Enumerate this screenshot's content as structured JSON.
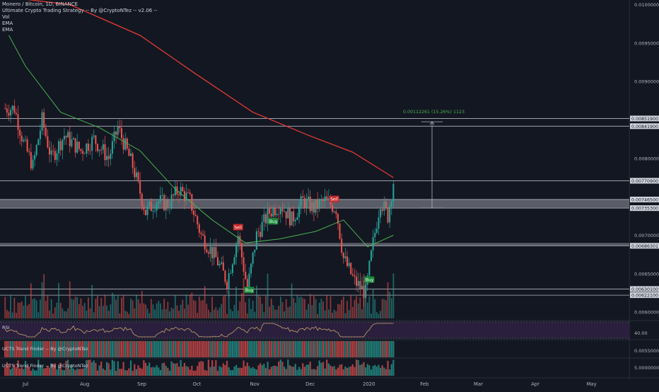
{
  "chart_data": {
    "type": "candlestick",
    "symbol_line": "Monero / Bitcoin, 1D, BINANCE",
    "legend": [
      "Ultimate Crypto Trading Strategy -- By @CryptoNTez -- v2.06 --",
      "Vol",
      "EMA",
      "EMA"
    ],
    "price_axis": {
      "range": [
        0.0059,
        0.01006
      ],
      "ticks": [
        "0.01000000",
        "0.00950000",
        "0.00900000",
        "0.00800000",
        "0.00700000",
        "0.00650000",
        "0.00600000",
        "0.00550000"
      ],
      "tick_values": [
        0.01,
        0.0095,
        0.009,
        0.008,
        0.007,
        0.0065,
        0.006,
        0.0055
      ]
    },
    "horizontal_levels": [
      {
        "label": "0.00851900",
        "value": 0.008519
      },
      {
        "label": "0.00841900",
        "value": 0.008419
      },
      {
        "label": "0.00770900",
        "value": 0.007709
      },
      {
        "label": "0.00746500",
        "value": 0.007465
      },
      {
        "label": "0.00735300",
        "value": 0.007353
      },
      {
        "label": "0.00686301",
        "value": 0.00686301
      },
      {
        "label": "0.00630100",
        "value": 0.006301
      },
      {
        "label": "0.00622100",
        "value": 0.006221
      }
    ],
    "zones": [
      {
        "from": 0.007353,
        "to": 0.007465
      },
      {
        "from": 0.00686301,
        "to": 0.0069
      }
    ],
    "measure": {
      "label": "0.00112261 (15.26%) 1123",
      "from": 0.007353,
      "to": 0.008476
    },
    "time_axis": [
      "Jul",
      "Aug",
      "Sep",
      "Oct",
      "Nov",
      "Dec",
      "2020",
      "Feb",
      "Mar",
      "Apr",
      "May"
    ],
    "signals": [
      {
        "type": "Sell",
        "date": "2019-10-24"
      },
      {
        "type": "Buy",
        "date": "2019-10-30"
      },
      {
        "type": "Buy",
        "date": "2019-11-12"
      },
      {
        "type": "Sell",
        "date": "2019-12-15"
      },
      {
        "type": "Buy",
        "date": "2020-01-03"
      }
    ],
    "ohlc_anchors": [
      {
        "date": "2019-06-25",
        "close": 0.00865
      },
      {
        "date": "2019-06-30",
        "close": 0.0082
      },
      {
        "date": "2019-07-05",
        "close": 0.0079
      },
      {
        "date": "2019-07-10",
        "close": 0.0085
      },
      {
        "date": "2019-07-15",
        "close": 0.008
      },
      {
        "date": "2019-07-22",
        "close": 0.0083
      },
      {
        "date": "2019-07-31",
        "close": 0.0081
      },
      {
        "date": "2019-08-07",
        "close": 0.00825
      },
      {
        "date": "2019-08-15",
        "close": 0.008
      },
      {
        "date": "2019-08-20",
        "close": 0.0084
      },
      {
        "date": "2019-08-28",
        "close": 0.0079
      },
      {
        "date": "2019-09-04",
        "close": 0.0073
      },
      {
        "date": "2019-09-10",
        "close": 0.00745
      },
      {
        "date": "2019-09-16",
        "close": 0.0074
      },
      {
        "date": "2019-09-22",
        "close": 0.0076
      },
      {
        "date": "2019-09-28",
        "close": 0.00745
      },
      {
        "date": "2019-10-04",
        "close": 0.007
      },
      {
        "date": "2019-10-12",
        "close": 0.0067
      },
      {
        "date": "2019-10-18",
        "close": 0.0064
      },
      {
        "date": "2019-10-24",
        "close": 0.007
      },
      {
        "date": "2019-10-29",
        "close": 0.0063
      },
      {
        "date": "2019-11-03",
        "close": 0.007
      },
      {
        "date": "2019-11-10",
        "close": 0.0073
      },
      {
        "date": "2019-11-16",
        "close": 0.0074
      },
      {
        "date": "2019-11-22",
        "close": 0.0072
      },
      {
        "date": "2019-11-28",
        "close": 0.00745
      },
      {
        "date": "2019-12-04",
        "close": 0.00735
      },
      {
        "date": "2019-12-10",
        "close": 0.00745
      },
      {
        "date": "2019-12-16",
        "close": 0.00735
      },
      {
        "date": "2019-12-20",
        "close": 0.0067
      },
      {
        "date": "2019-12-26",
        "close": 0.0064
      },
      {
        "date": "2020-01-01",
        "close": 0.00625
      },
      {
        "date": "2020-01-05",
        "close": 0.0069
      },
      {
        "date": "2020-01-09",
        "close": 0.00745
      },
      {
        "date": "2020-01-13",
        "close": 0.00725
      },
      {
        "date": "2020-01-16",
        "close": 0.0077
      }
    ],
    "ema_fast_anchors": [
      {
        "date": "2019-06-22",
        "value": 0.0096
      },
      {
        "date": "2019-07-01",
        "value": 0.0092
      },
      {
        "date": "2019-07-20",
        "value": 0.0086
      },
      {
        "date": "2019-08-10",
        "value": 0.0084
      },
      {
        "date": "2019-09-01",
        "value": 0.0081
      },
      {
        "date": "2019-09-20",
        "value": 0.0076
      },
      {
        "date": "2019-10-10",
        "value": 0.0072
      },
      {
        "date": "2019-10-28",
        "value": 0.0069
      },
      {
        "date": "2019-11-15",
        "value": 0.00695
      },
      {
        "date": "2019-12-05",
        "value": 0.00705
      },
      {
        "date": "2019-12-20",
        "value": 0.0072
      },
      {
        "date": "2020-01-02",
        "value": 0.00685
      },
      {
        "date": "2020-01-16",
        "value": 0.007
      }
    ],
    "ema_slow_anchors": [
      {
        "date": "2019-06-20",
        "value": 0.0101
      },
      {
        "date": "2019-07-25",
        "value": 0.01
      },
      {
        "date": "2019-09-01",
        "value": 0.0096
      },
      {
        "date": "2019-10-01",
        "value": 0.0091
      },
      {
        "date": "2019-11-01",
        "value": 0.0086
      },
      {
        "date": "2019-12-01",
        "value": 0.0083
      },
      {
        "date": "2019-12-25",
        "value": 0.00808
      },
      {
        "date": "2020-01-16",
        "value": 0.00775
      }
    ],
    "volume_note": "bars under price, green/red by direction",
    "rsi": {
      "label": "RSI",
      "ticks": [
        "40.00"
      ],
      "band": [
        30,
        70
      ]
    },
    "trend_finder_1": {
      "label": "UCTS Trend Finder -- By @CryptoNTez"
    },
    "trend_finder_2": {
      "label": "UCTS Trend Finder -- By @CryptoNTez",
      "ticks": [
        "5.00000000"
      ]
    },
    "colors": {
      "background": "#131722",
      "up": "#26a69a",
      "down": "#ef5350",
      "ema_fast": "#4caf50",
      "ema_slow": "#e53935",
      "level": "#b2b5be",
      "zone": "#9598a1",
      "rsi": "#c9a66b",
      "rsi_bg": "#2a1f3d",
      "text": "#b2b5be"
    }
  }
}
